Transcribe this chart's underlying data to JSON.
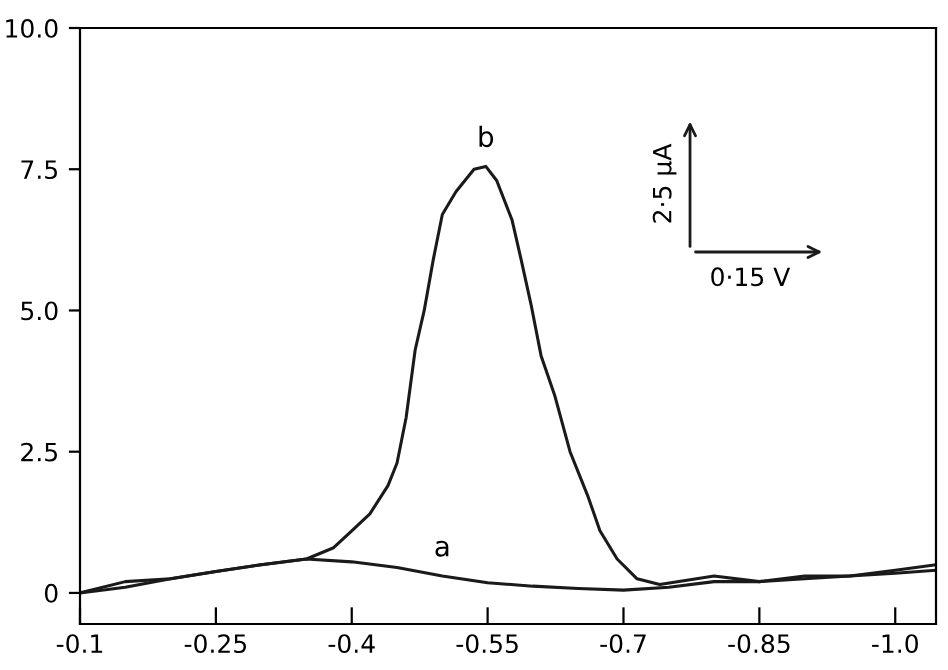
{
  "chart_data": {
    "type": "line",
    "xlim": [
      -0.1,
      -1.045
    ],
    "ylim": [
      -0.55,
      10.0
    ],
    "xticks": [
      -0.1,
      -0.25,
      -0.4,
      -0.55,
      -0.7,
      -0.85,
      {
        "value": -1.0,
        "label": "-1.0"
      }
    ],
    "yticks": [
      0,
      2.5,
      {
        "value": 5.0,
        "label": "5.0"
      },
      7.5,
      {
        "value": 10.0,
        "label": "10.0"
      }
    ],
    "grid": false,
    "marker": "none",
    "line_style": "solid",
    "series": [
      {
        "color": "#1a1a1a",
        "x": [
          -0.1,
          -0.15,
          -0.2,
          -0.25,
          -0.3,
          -0.35,
          -0.38,
          -0.4,
          -0.42,
          -0.44,
          -0.45,
          -0.46,
          -0.47,
          -0.48,
          -0.49,
          -0.5,
          -0.515,
          -0.535,
          -0.548,
          -0.56,
          -0.577,
          -0.587,
          -0.598,
          -0.609,
          -0.624,
          -0.641,
          -0.661,
          -0.674,
          -0.693,
          -0.715,
          -0.74,
          -0.8,
          -0.85,
          -0.9,
          -0.95,
          -1.0,
          -1.045
        ],
        "values": [
          0,
          0.2,
          0.25,
          0.38,
          0.5,
          0.6,
          0.8,
          1.1,
          1.4,
          1.9,
          2.3,
          3.1,
          4.3,
          5.0,
          5.9,
          6.7,
          7.1,
          7.5,
          7.55,
          7.3,
          6.6,
          5.9,
          5.1,
          4.2,
          3.5,
          2.5,
          1.7,
          1.1,
          0.6,
          0.25,
          0.15,
          0.3,
          0.2,
          0.3,
          0.3,
          0.4,
          0.5
        ]
      },
      {
        "color": "#1a1a1a",
        "x": [
          -0.1,
          -0.15,
          -0.2,
          -0.25,
          -0.3,
          -0.35,
          -0.4,
          -0.45,
          -0.5,
          -0.55,
          -0.6,
          -0.65,
          -0.7,
          -0.75,
          -0.8,
          -0.85,
          -0.9,
          -0.95,
          -1.0,
          -1.045
        ],
        "values": [
          0,
          0.1,
          0.25,
          0.38,
          0.5,
          0.6,
          0.55,
          0.45,
          0.3,
          0.18,
          0.12,
          0.08,
          0.05,
          0.1,
          0.2,
          0.2,
          0.25,
          0.3,
          0.35,
          0.4
        ]
      }
    ],
    "annotations": [
      {
        "text": "b",
        "x": -0.548,
        "y": 7.55
      },
      {
        "text": "a",
        "x": -0.5,
        "y": 0.3
      },
      "2·5 μA",
      "0·15 V"
    ]
  }
}
